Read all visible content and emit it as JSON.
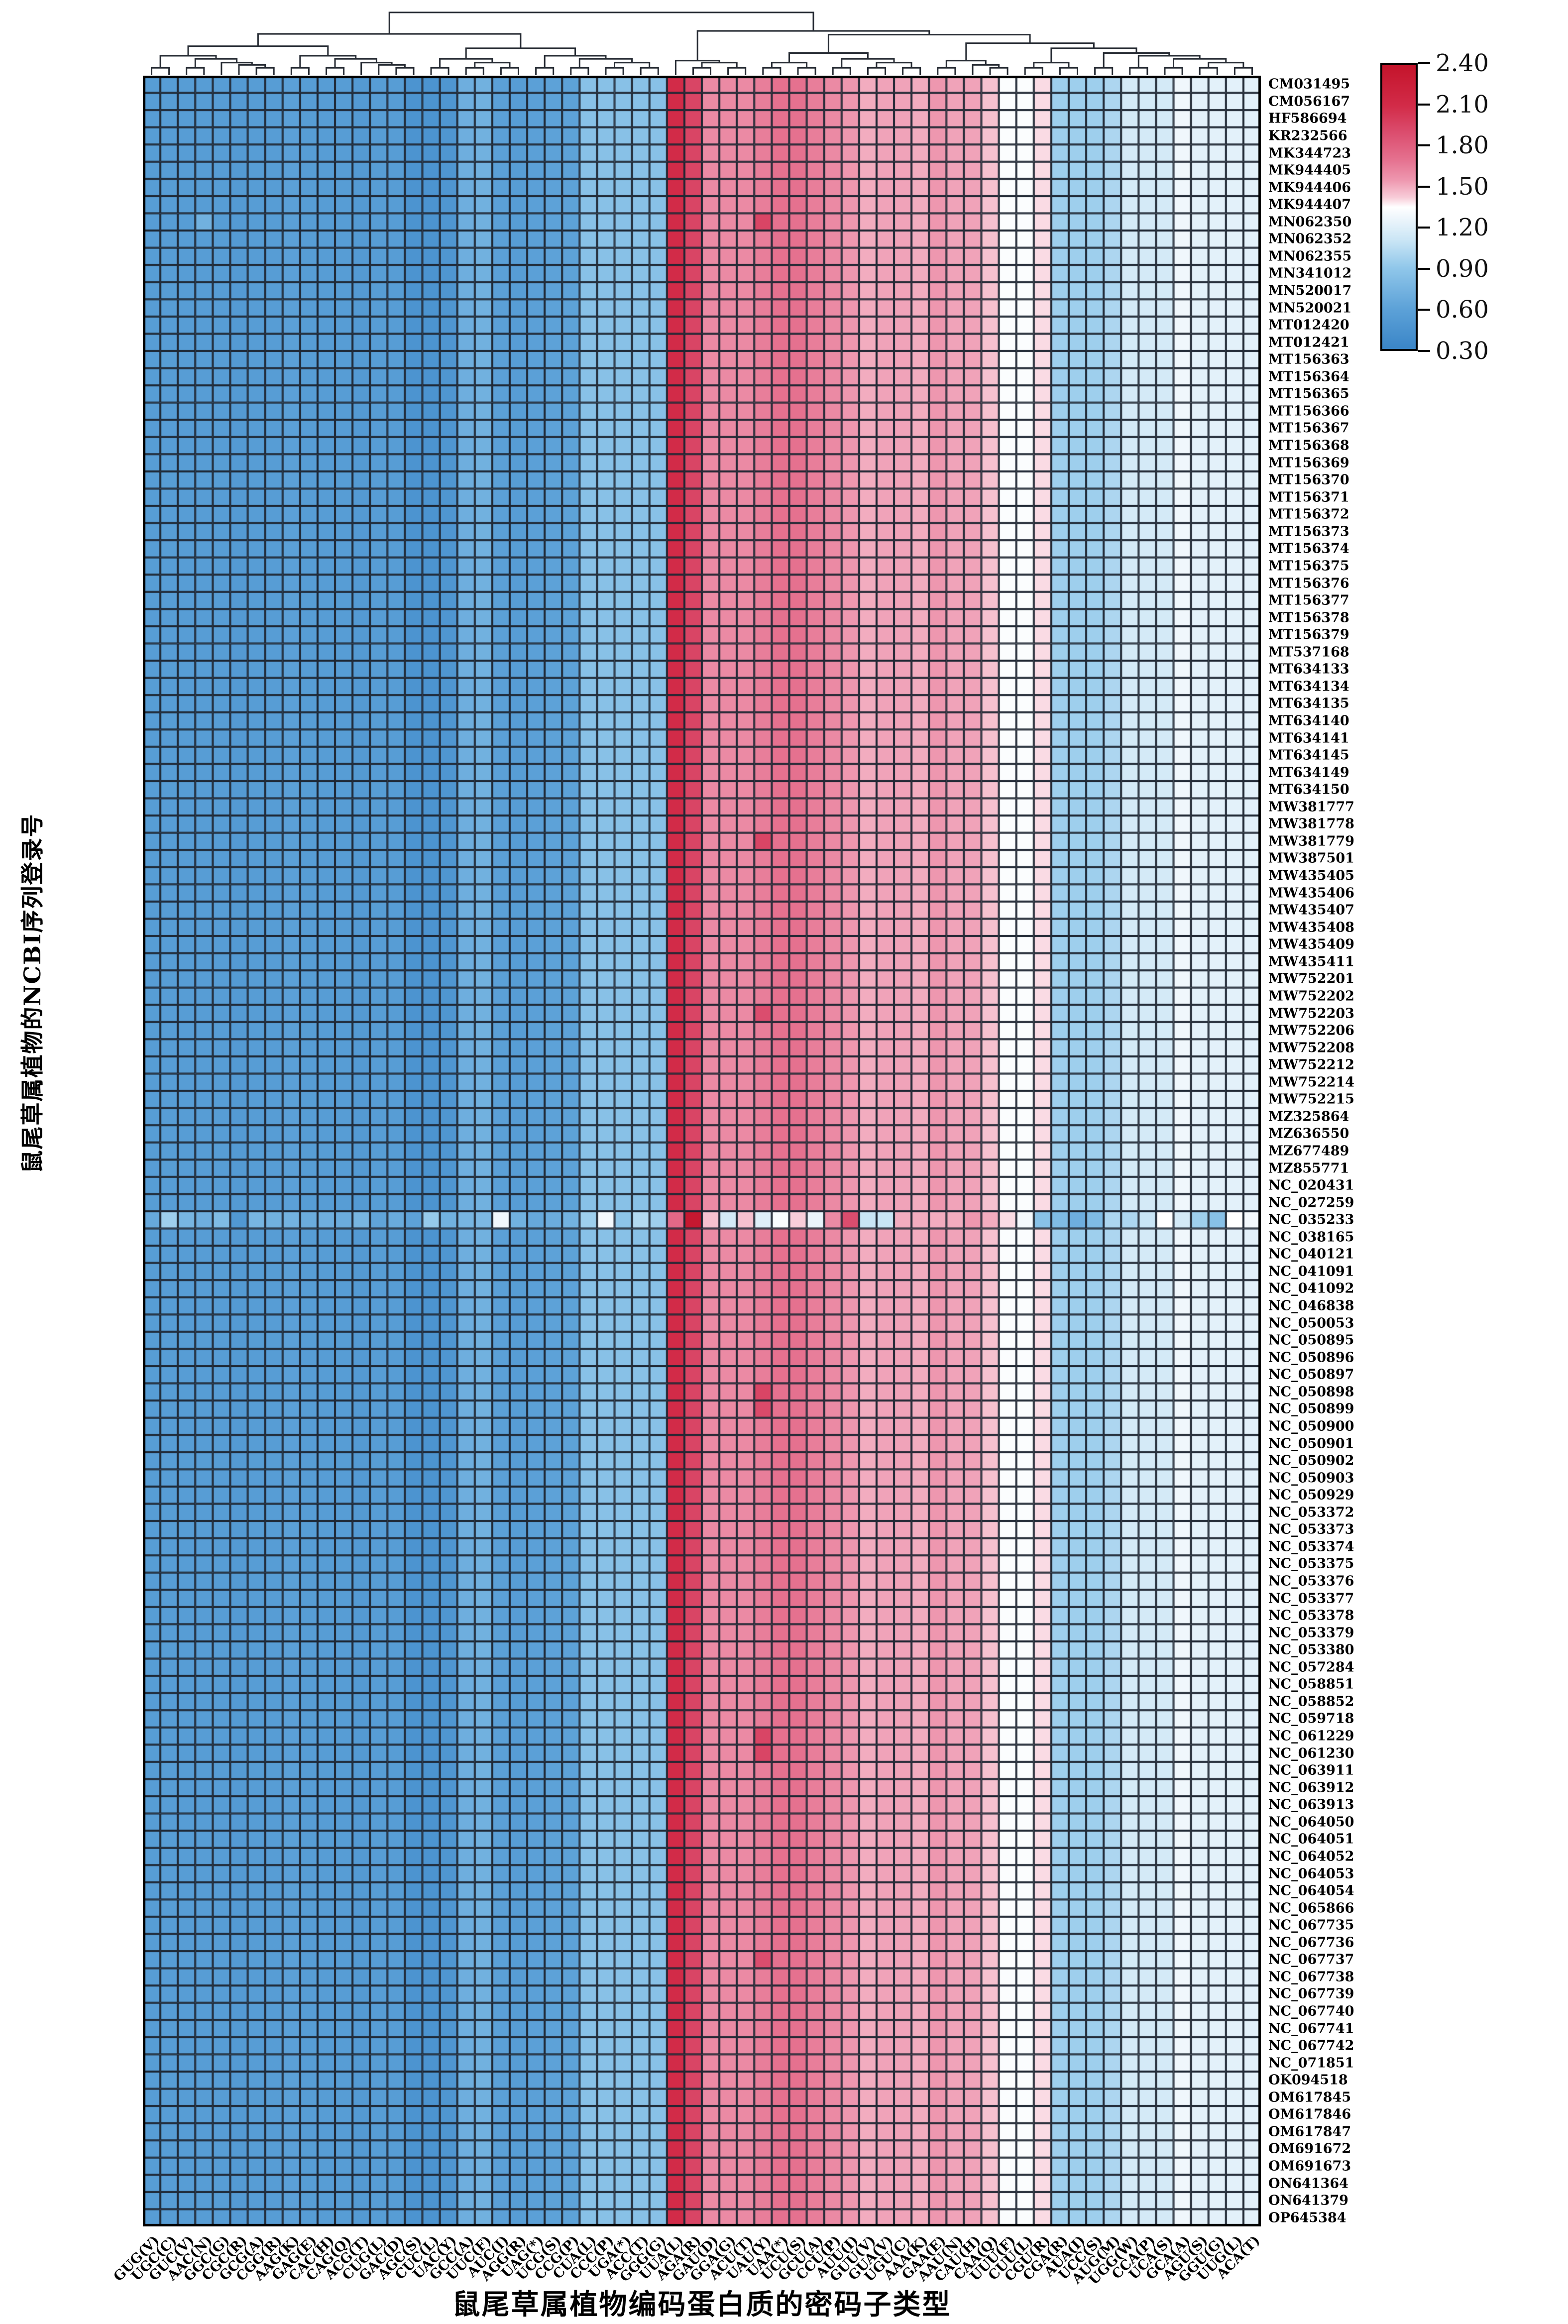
{
  "titles": {
    "x_axis": "鼠尾草属植物编码蛋白质的密码子类型",
    "y_axis": "鼠尾草属植物的NCBI序列登录号"
  },
  "colorbar": {
    "min": 0.3,
    "max": 2.4,
    "tick_labels": [
      "2.40",
      "2.10",
      "1.80",
      "1.50",
      "1.20",
      "0.90",
      "0.60",
      "0.30"
    ]
  },
  "colors": {
    "grid_line": "#1d2531",
    "heatmap_border": "#000000",
    "dendrogram_line": "#262b33",
    "colormap_anchors": [
      [
        0.3,
        "#3a85c7"
      ],
      [
        0.6,
        "#5da2d8"
      ],
      [
        0.9,
        "#90c7ea"
      ],
      [
        1.1,
        "#c9e5f5"
      ],
      [
        1.28,
        "#f0f7fc"
      ],
      [
        1.35,
        "#ffffff"
      ],
      [
        1.42,
        "#f8cdd9"
      ],
      [
        1.55,
        "#ee97af"
      ],
      [
        1.7,
        "#e5718f"
      ],
      [
        1.9,
        "#db4d6e"
      ],
      [
        2.1,
        "#d22b48"
      ],
      [
        2.4,
        "#c4142b"
      ]
    ]
  },
  "chart_data": {
    "type": "heatmap",
    "xlabel": "鼠尾草属植物编码蛋白质的密码子类型",
    "ylabel": "鼠尾草属植物的NCBI序列登录号",
    "value_range": [
      0.3,
      2.4
    ],
    "legend_ticks": [
      2.4,
      2.1,
      1.8,
      1.5,
      1.2,
      0.9,
      0.6,
      0.3
    ],
    "grid": true,
    "legend_position": "right",
    "columns": [
      "GUG(V)",
      "UGC(C)",
      "GUC(V)",
      "AAC(N)",
      "GGC(G)",
      "CGC(R)",
      "GCG(A)",
      "CGG(R)",
      "AAG(K)",
      "GAG(E)",
      "CAC(H)",
      "CAG(Q)",
      "ACG(T)",
      "CUG(L)",
      "GAC(D)",
      "AGC(S)",
      "CUC(L)",
      "UAC(Y)",
      "GCC(A)",
      "UUC(F)",
      "AUC(I)",
      "AGG(R)",
      "UAG(*)",
      "UCG(S)",
      "CCG(P)",
      "CUA(L)",
      "CCC(P)",
      "UGA(*)",
      "ACC(T)",
      "GGG(G)",
      "UUA(L)",
      "AGA(R)",
      "GAU(D)",
      "GGA(G)",
      "ACU(T)",
      "UAU(Y)",
      "UAA(*)",
      "UCU(S)",
      "GCU(A)",
      "CCU(P)",
      "AUU(I)",
      "GUU(V)",
      "GUA(V)",
      "UGU(C)",
      "AAA(K)",
      "GAA(E)",
      "AAU(N)",
      "CAU(H)",
      "CAA(Q)",
      "UUU(F)",
      "CUU(L)",
      "CGU(R)",
      "CGA(R)",
      "AUA(I)",
      "UCC(S)",
      "AUG(M)",
      "UGG(W)",
      "CCA(P)",
      "UCA(S)",
      "GCA(A)",
      "AGU(S)",
      "GGU(G)",
      "UUG(L)",
      "ACA(T)"
    ],
    "rows": [
      "CM031495",
      "CM056167",
      "HF586694",
      "KR232566",
      "MK344723",
      "MK944405",
      "MK944406",
      "MK944407",
      "MN062350",
      "MN062352",
      "MN062355",
      "MN341012",
      "MN520017",
      "MN520021",
      "MT012420",
      "MT012421",
      "MT156363",
      "MT156364",
      "MT156365",
      "MT156366",
      "MT156367",
      "MT156368",
      "MT156369",
      "MT156370",
      "MT156371",
      "MT156372",
      "MT156373",
      "MT156374",
      "MT156375",
      "MT156376",
      "MT156377",
      "MT156378",
      "MT156379",
      "MT537168",
      "MT634133",
      "MT634134",
      "MT634135",
      "MT634140",
      "MT634141",
      "MT634145",
      "MT634149",
      "MT634150",
      "MW381777",
      "MW381778",
      "MW381779",
      "MW387501",
      "MW435405",
      "MW435406",
      "MW435407",
      "MW435408",
      "MW435409",
      "MW435411",
      "MW752201",
      "MW752202",
      "MW752203",
      "MW752206",
      "MW752208",
      "MW752212",
      "MW752214",
      "MW752215",
      "MZ325864",
      "MZ636550",
      "MZ677489",
      "MZ855771",
      "NC_020431",
      "NC_027259",
      "NC_035233",
      "NC_038165",
      "NC_040121",
      "NC_041091",
      "NC_041092",
      "NC_046838",
      "NC_050053",
      "NC_050895",
      "NC_050896",
      "NC_050897",
      "NC_050898",
      "NC_050899",
      "NC_050900",
      "NC_050901",
      "NC_050902",
      "NC_050903",
      "NC_050929",
      "NC_053372",
      "NC_053373",
      "NC_053374",
      "NC_053375",
      "NC_053376",
      "NC_053377",
      "NC_053378",
      "NC_053379",
      "NC_053380",
      "NC_057284",
      "NC_058851",
      "NC_058852",
      "NC_059718",
      "NC_061229",
      "NC_061230",
      "NC_063911",
      "NC_063912",
      "NC_063913",
      "NC_064050",
      "NC_064051",
      "NC_064052",
      "NC_064053",
      "NC_064054",
      "NC_065866",
      "NC_067735",
      "NC_067736",
      "NC_067737",
      "NC_067738",
      "NC_067739",
      "NC_067740",
      "NC_067741",
      "NC_067742",
      "NC_071851",
      "OK094518",
      "OM617845",
      "OM617846",
      "OM617847",
      "OM691672",
      "OM691673",
      "ON641364",
      "ON641379",
      "OP645384"
    ],
    "typical_row_values": [
      0.55,
      0.55,
      0.55,
      0.55,
      0.55,
      0.52,
      0.55,
      0.55,
      0.58,
      0.55,
      0.55,
      0.55,
      0.52,
      0.55,
      0.55,
      0.45,
      0.45,
      0.48,
      0.7,
      0.72,
      0.58,
      0.55,
      0.58,
      0.6,
      0.6,
      0.85,
      0.85,
      0.85,
      0.85,
      0.85,
      2.1,
      1.95,
      1.6,
      1.6,
      1.6,
      1.65,
      1.7,
      1.7,
      1.65,
      1.6,
      1.55,
      1.5,
      1.52,
      1.52,
      1.5,
      1.55,
      1.52,
      1.52,
      1.45,
      1.33,
      1.33,
      1.4,
      0.95,
      0.95,
      0.95,
      1.0,
      1.15,
      1.15,
      1.15,
      1.28,
      1.22,
      1.22,
      1.22,
      1.22
    ],
    "special_row": {
      "row": "NC_035233",
      "values": [
        0.65,
        0.95,
        0.75,
        0.7,
        0.8,
        0.5,
        0.75,
        0.72,
        0.73,
        0.68,
        0.7,
        0.68,
        0.75,
        0.62,
        0.67,
        0.6,
        0.92,
        0.72,
        0.75,
        0.78,
        1.28,
        0.72,
        0.65,
        0.68,
        0.73,
        0.95,
        1.3,
        0.88,
        1.02,
        0.95,
        1.75,
        2.35,
        1.45,
        1.15,
        1.45,
        1.2,
        1.32,
        1.42,
        1.25,
        1.6,
        1.9,
        1.1,
        1.1,
        1.5,
        1.5,
        1.5,
        1.5,
        1.55,
        1.5,
        1.4,
        1.3,
        0.85,
        0.8,
        0.7,
        0.8,
        1.0,
        1.0,
        1.1,
        1.35,
        1.15,
        0.95,
        0.85,
        1.35,
        1.3
      ]
    },
    "cell_overrides": [
      {
        "row": "MN062350",
        "col": "UAU(Y)",
        "value": 1.95
      },
      {
        "row": "MN062350",
        "col": "AAC(N)",
        "value": 0.72
      },
      {
        "row": "MW381779",
        "col": "UAU(Y)",
        "value": 1.95
      },
      {
        "row": "MW752203",
        "col": "UAU(Y)",
        "value": 1.9
      },
      {
        "row": "NC_050898",
        "col": "UAU(Y)",
        "value": 1.95
      },
      {
        "row": "NC_050899",
        "col": "UAU(Y)",
        "value": 1.92
      },
      {
        "row": "NC_061229",
        "col": "UAU(Y)",
        "value": 1.95
      },
      {
        "row": "NC_061230",
        "col": "UAU(Y)",
        "value": 1.95
      },
      {
        "row": "NC_067737",
        "col": "UAU(Y)",
        "value": 1.9
      }
    ],
    "column_tree": [
      [
        [
          [
            [
              1,
              2
            ],
            [
              [
                3,
                4
              ],
              [
                5,
                [
                  6,
                  [
                    7,
                    8
                  ]
                ]
              ]
            ]
          ],
          [
            [
              9,
              10
            ],
            [
              [
                11,
                12
              ],
              [
                13,
                [
                  14,
                  [
                    15,
                    16
                  ]
                ]
              ]
            ]
          ]
        ],
        [
          [
            [
              17,
              18
            ],
            [
              [
                19,
                20
              ],
              [
                21,
                22
              ]
            ]
          ],
          [
            [
              23,
              24
            ],
            [
              [
                25,
                26
              ],
              [
                [
                  27,
                  28
                ],
                [
                  29,
                  30
                ]
              ]
            ]
          ]
        ]
      ],
      [
        [
          31,
          [
            [
              32,
              33
            ],
            [
              34,
              35
            ]
          ]
        ],
        [
          [
            [
              [
                36,
                37
              ],
              [
                38,
                39
              ]
            ],
            [
              [
                40,
                41
              ],
              [
                [
                  42,
                  43
                ],
                [
                  44,
                  45
                ]
              ]
            ]
          ],
          [
            [
              [
                46,
                47
              ],
              [
                48,
                [
                  49,
                  50
                ]
              ]
            ],
            [
              [
                [
                  51,
                  52
                ],
                [
                  53,
                  54
                ]
              ],
              [
                [
                  55,
                  56
                ],
                [
                  [
                    57,
                    58
                  ],
                  [
                    [
                      59,
                      60
                    ],
                    [
                      [
                        61,
                        62
                      ],
                      [
                        63,
                        64
                      ]
                    ]
                  ]
                ]
              ]
            ]
          ]
        ]
      ]
    ]
  }
}
